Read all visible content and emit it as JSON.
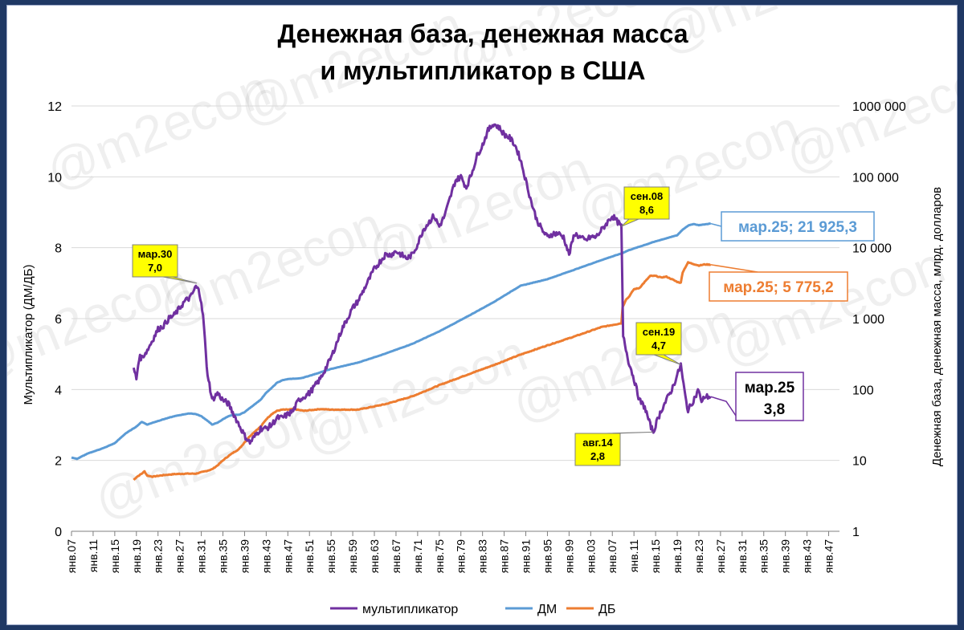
{
  "colors": {
    "multiplier": "#7030a0",
    "dm": "#5b9bd5",
    "db": "#ed7d31",
    "callout_fill": "#ffff00",
    "grid": "#d9d9d9"
  },
  "watermark": "@m2econ",
  "chart_data": {
    "type": "line",
    "title_lines": [
      "Денежная база, денежная масса",
      "и мультипликатор в США"
    ],
    "ylabel_left": "Мультипликатор (ДМ/ДБ)",
    "ylabel_right": "Денежная база, денежная масса, млрд. долларов",
    "y_left": {
      "min": 0,
      "max": 12,
      "ticks": [
        0,
        2,
        4,
        6,
        8,
        10,
        12
      ]
    },
    "y_right": {
      "scale": "log",
      "min": 1,
      "max": 1000000,
      "ticks": [
        1,
        10,
        100,
        1000,
        10000,
        100000,
        1000000
      ],
      "tick_labels": [
        "1",
        "10",
        "100",
        "1 000",
        "10 000",
        "100 000",
        "1000 000"
      ]
    },
    "x": {
      "min": 1907,
      "max": 2049,
      "step": 4
    },
    "x_tick_labels": [
      "янв.07",
      "янв.11",
      "янв.15",
      "янв.19",
      "янв.23",
      "янв.27",
      "янв.31",
      "янв.35",
      "янв.39",
      "янв.43",
      "янв.47",
      "янв.51",
      "янв.55",
      "янв.59",
      "янв.63",
      "янв.67",
      "янв.71",
      "янв.75",
      "янв.79",
      "янв.83",
      "янв.87",
      "янв.91",
      "янв.95",
      "янв.99",
      "янв.03",
      "янв.07",
      "янв.11",
      "янв.15",
      "янв.19",
      "янв.23",
      "янв.27",
      "янв.31",
      "янв.35",
      "янв.39",
      "янв.43",
      "янв.47"
    ],
    "legend": [
      "мультипликатор",
      "ДМ",
      "ДБ"
    ],
    "series": [
      {
        "name": "мультипликатор",
        "axis": "left",
        "points": [
          [
            1918.5,
            4.6
          ],
          [
            1919,
            4.3
          ],
          [
            1919.5,
            4.9
          ],
          [
            1920,
            4.9
          ],
          [
            1921,
            5.1
          ],
          [
            1922,
            5.4
          ],
          [
            1923,
            5.7
          ],
          [
            1924,
            5.8
          ],
          [
            1925,
            6.0
          ],
          [
            1926,
            6.1
          ],
          [
            1927,
            6.3
          ],
          [
            1928,
            6.5
          ],
          [
            1929,
            6.6
          ],
          [
            1930,
            6.9
          ],
          [
            1930.5,
            6.8
          ],
          [
            1931,
            6.5
          ],
          [
            1931.5,
            5.8
          ],
          [
            1932,
            4.6
          ],
          [
            1933,
            3.7
          ],
          [
            1934,
            3.9
          ],
          [
            1935,
            3.7
          ],
          [
            1936,
            3.6
          ],
          [
            1937,
            3.3
          ],
          [
            1938,
            3.0
          ],
          [
            1939,
            2.7
          ],
          [
            1940,
            2.5
          ],
          [
            1941,
            2.7
          ],
          [
            1942,
            2.9
          ],
          [
            1943,
            2.9
          ],
          [
            1944,
            3.0
          ],
          [
            1945,
            3.2
          ],
          [
            1946,
            3.2
          ],
          [
            1947,
            3.3
          ],
          [
            1948,
            3.4
          ],
          [
            1949,
            3.7
          ],
          [
            1950,
            3.8
          ],
          [
            1951,
            3.9
          ],
          [
            1952,
            4.1
          ],
          [
            1953,
            4.3
          ],
          [
            1954,
            4.6
          ],
          [
            1955,
            4.9
          ],
          [
            1956,
            5.3
          ],
          [
            1957,
            5.7
          ],
          [
            1958,
            6.0
          ],
          [
            1959,
            6.3
          ],
          [
            1960,
            6.5
          ],
          [
            1961,
            6.8
          ],
          [
            1962,
            7.1
          ],
          [
            1963,
            7.4
          ],
          [
            1964,
            7.6
          ],
          [
            1965,
            7.8
          ],
          [
            1966,
            7.8
          ],
          [
            1967,
            7.9
          ],
          [
            1968,
            7.8
          ],
          [
            1969,
            7.7
          ],
          [
            1970,
            7.8
          ],
          [
            1971,
            8.1
          ],
          [
            1972,
            8.5
          ],
          [
            1973,
            8.7
          ],
          [
            1974,
            8.9
          ],
          [
            1975,
            8.6
          ],
          [
            1976,
            8.9
          ],
          [
            1977,
            9.4
          ],
          [
            1978,
            9.9
          ],
          [
            1979,
            10.0
          ],
          [
            1980,
            9.7
          ],
          [
            1981,
            10.1
          ],
          [
            1982,
            10.6
          ],
          [
            1983,
            10.9
          ],
          [
            1984,
            11.3
          ],
          [
            1985,
            11.5
          ],
          [
            1986,
            11.4
          ],
          [
            1987,
            11.2
          ],
          [
            1988,
            11.1
          ],
          [
            1989,
            10.9
          ],
          [
            1990,
            10.5
          ],
          [
            1991,
            9.9
          ],
          [
            1992,
            9.3
          ],
          [
            1993,
            8.8
          ],
          [
            1994,
            8.5
          ],
          [
            1995,
            8.3
          ],
          [
            1996,
            8.4
          ],
          [
            1997,
            8.4
          ],
          [
            1998,
            8.3
          ],
          [
            1999,
            7.8
          ],
          [
            2000,
            8.4
          ],
          [
            2001,
            8.3
          ],
          [
            2002,
            8.2
          ],
          [
            2003,
            8.3
          ],
          [
            2004,
            8.3
          ],
          [
            2005,
            8.5
          ],
          [
            2006,
            8.7
          ],
          [
            2007,
            8.9
          ],
          [
            2008.67,
            8.6
          ],
          [
            2009,
            5.5
          ],
          [
            2010,
            4.8
          ],
          [
            2011,
            4.3
          ],
          [
            2012,
            3.7
          ],
          [
            2013,
            3.5
          ],
          [
            2014,
            3.0
          ],
          [
            2014.6,
            2.8
          ],
          [
            2015,
            3.0
          ],
          [
            2016,
            3.4
          ],
          [
            2017,
            3.7
          ],
          [
            2018,
            4.0
          ],
          [
            2019,
            4.4
          ],
          [
            2019.67,
            4.7
          ],
          [
            2020,
            4.3
          ],
          [
            2020.5,
            3.8
          ],
          [
            2021,
            3.4
          ],
          [
            2022,
            3.7
          ],
          [
            2023,
            4.0
          ],
          [
            2023.5,
            3.6
          ],
          [
            2024,
            3.8
          ],
          [
            2025.17,
            3.8
          ]
        ]
      },
      {
        "name": "ДМ",
        "axis": "right",
        "points": [
          [
            1907,
            11.0
          ],
          [
            1908,
            10.5
          ],
          [
            1910,
            12.5
          ],
          [
            1913,
            15.0
          ],
          [
            1915,
            17.5
          ],
          [
            1917,
            24
          ],
          [
            1919,
            30
          ],
          [
            1920,
            35
          ],
          [
            1921,
            32
          ],
          [
            1922,
            34
          ],
          [
            1924,
            38
          ],
          [
            1926,
            42
          ],
          [
            1928,
            45
          ],
          [
            1929,
            46
          ],
          [
            1930,
            45
          ],
          [
            1931,
            42
          ],
          [
            1932,
            37
          ],
          [
            1933,
            32
          ],
          [
            1934,
            34
          ],
          [
            1935,
            38
          ],
          [
            1936,
            42
          ],
          [
            1937,
            44
          ],
          [
            1938,
            44
          ],
          [
            1939,
            48
          ],
          [
            1940,
            55
          ],
          [
            1941,
            63
          ],
          [
            1942,
            72
          ],
          [
            1943,
            90
          ],
          [
            1944,
            105
          ],
          [
            1945,
            125
          ],
          [
            1946,
            135
          ],
          [
            1947,
            140
          ],
          [
            1948,
            142
          ],
          [
            1949,
            143
          ],
          [
            1950,
            148
          ],
          [
            1952,
            165
          ],
          [
            1955,
            195
          ],
          [
            1960,
            240
          ],
          [
            1965,
            320
          ],
          [
            1970,
            440
          ],
          [
            1975,
            660
          ],
          [
            1980,
            1050
          ],
          [
            1985,
            1700
          ],
          [
            1990,
            2900
          ],
          [
            1995,
            3600
          ],
          [
            2000,
            4900
          ],
          [
            2005,
            6700
          ],
          [
            2008.67,
            8300
          ],
          [
            2010,
            9200
          ],
          [
            2015,
            12300
          ],
          [
            2019,
            15000
          ],
          [
            2020,
            18000
          ],
          [
            2021,
            20500
          ],
          [
            2022,
            21600
          ],
          [
            2023,
            20800
          ],
          [
            2024,
            21300
          ],
          [
            2025.17,
            21925.3
          ]
        ]
      },
      {
        "name": "ДБ",
        "axis": "right",
        "points": [
          [
            1918.5,
            5.3
          ],
          [
            1919,
            5.8
          ],
          [
            1920,
            6.5
          ],
          [
            1920.5,
            7.0
          ],
          [
            1921,
            6.1
          ],
          [
            1922,
            5.9
          ],
          [
            1924,
            6.2
          ],
          [
            1926,
            6.4
          ],
          [
            1928,
            6.5
          ],
          [
            1930,
            6.5
          ],
          [
            1931,
            6.8
          ],
          [
            1932,
            7.1
          ],
          [
            1933,
            7.5
          ],
          [
            1934,
            8.5
          ],
          [
            1935,
            10
          ],
          [
            1936,
            11.5
          ],
          [
            1937,
            13
          ],
          [
            1938,
            14.5
          ],
          [
            1939,
            18
          ],
          [
            1940,
            22
          ],
          [
            1941,
            26
          ],
          [
            1942,
            30
          ],
          [
            1943,
            38
          ],
          [
            1944,
            45
          ],
          [
            1945,
            50
          ],
          [
            1946,
            52
          ],
          [
            1947,
            52
          ],
          [
            1948,
            53
          ],
          [
            1950,
            50
          ],
          [
            1953,
            53
          ],
          [
            1955,
            52
          ],
          [
            1960,
            52
          ],
          [
            1965,
            62
          ],
          [
            1970,
            80
          ],
          [
            1975,
            115
          ],
          [
            1980,
            160
          ],
          [
            1985,
            220
          ],
          [
            1990,
            310
          ],
          [
            1995,
            420
          ],
          [
            2000,
            560
          ],
          [
            2005,
            760
          ],
          [
            2008.67,
            860
          ],
          [
            2008.9,
            1450
          ],
          [
            2009.5,
            1850
          ],
          [
            2010,
            2000
          ],
          [
            2011,
            2600
          ],
          [
            2012,
            2700
          ],
          [
            2013,
            3300
          ],
          [
            2014,
            4000
          ],
          [
            2015,
            4000
          ],
          [
            2016,
            3800
          ],
          [
            2017,
            3900
          ],
          [
            2018,
            3600
          ],
          [
            2019,
            3300
          ],
          [
            2019.67,
            3200
          ],
          [
            2020,
            4500
          ],
          [
            2021,
            6200
          ],
          [
            2022,
            5900
          ],
          [
            2023,
            5600
          ],
          [
            2024,
            5800
          ],
          [
            2025.17,
            5775.2
          ]
        ]
      }
    ],
    "annotations": [
      {
        "series": "мультипликатор",
        "x": 1930.17,
        "y": 7.0,
        "lines": [
          "мар.30",
          "7,0"
        ],
        "style": "yellow"
      },
      {
        "series": "мультипликатор",
        "x": 2008.67,
        "y": 8.6,
        "lines": [
          "сен.08",
          "8,6"
        ],
        "style": "yellow"
      },
      {
        "series": "мультипликатор",
        "x": 2019.67,
        "y": 4.7,
        "lines": [
          "сен.19",
          "4,7"
        ],
        "style": "yellow"
      },
      {
        "series": "мультипликатор",
        "x": 2014.58,
        "y": 2.8,
        "lines": [
          "авг.14",
          "2,8"
        ],
        "style": "yellow"
      },
      {
        "series": "мультипликатор",
        "x": 2025.17,
        "y": 3.8,
        "lines": [
          "мар.25",
          "3,8"
        ],
        "style": "white-purple"
      },
      {
        "series": "ДМ",
        "x": 2025.17,
        "y": 21925.3,
        "lines": [
          "мар.25;  21 925,3"
        ],
        "style": "white-blue"
      },
      {
        "series": "ДБ",
        "x": 2025.17,
        "y": 5775.2,
        "lines": [
          "мар.25;  5 775,2"
        ],
        "style": "white-orange"
      }
    ]
  }
}
